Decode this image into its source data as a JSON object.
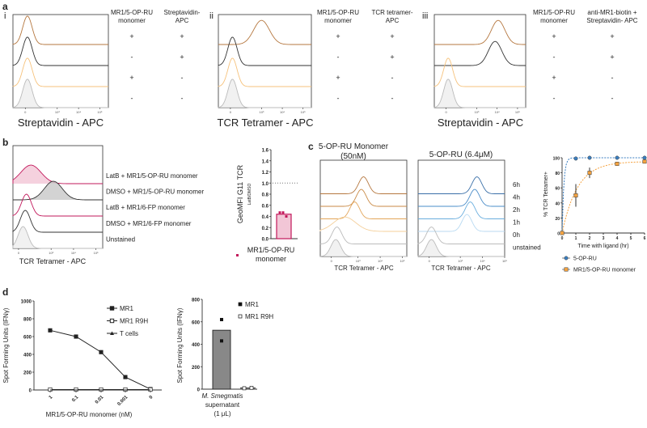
{
  "panels": {
    "a": "a",
    "b": "b",
    "c": "c",
    "d": "d",
    "i": "i",
    "ii": "ii",
    "iii": "iii"
  },
  "a": {
    "i": {
      "xlabel": "Streptavidin - APC",
      "col1": [
        "MR1/5-OP-RU",
        "monomer"
      ],
      "col2": [
        "Streptavidin-",
        "APC"
      ],
      "rows": [
        [
          "+",
          "+"
        ],
        [
          "-",
          "+"
        ],
        [
          "+",
          "-"
        ],
        [
          "-",
          "-"
        ]
      ]
    },
    "ii": {
      "xlabel": "TCR Tetramer - APC",
      "col1": [
        "MR1/5-OP-RU",
        "monomer"
      ],
      "col2": [
        "TCR tetramer-",
        "APC"
      ],
      "rows": [
        [
          "+",
          "+"
        ],
        [
          "-",
          "+"
        ],
        [
          "+",
          "-"
        ],
        [
          "-",
          "-"
        ]
      ]
    },
    "iii": {
      "xlabel": "Streptavidin - APC",
      "col1": [
        "MR1/5-OP-RU",
        "monomer"
      ],
      "col2": [
        "anti-MR1-biotin +",
        "Streptavidin- APC"
      ],
      "rows": [
        [
          "+",
          "+"
        ],
        [
          "-",
          "+"
        ],
        [
          "+",
          "-"
        ],
        [
          "-",
          "-"
        ]
      ]
    }
  },
  "b": {
    "xlabel": "TCR Tetramer - APC",
    "labels": [
      "LatB + MR1/5-OP-RU monomer",
      "DMSO + MR1/5-OP-RU monomer",
      "LatB + MR1/6-FP monomer",
      "DMSO + MR1/6-FP monomer",
      "Unstained"
    ]
  },
  "c": {
    "title1": [
      "5-OP-RU Monomer",
      "(50nM)"
    ],
    "title2": "5-OP-RU (6.4μM)",
    "xlabel": "TCR Tetramer - APC",
    "times": [
      "6h",
      "4h",
      "2h",
      "1h",
      "0h",
      "unstained"
    ]
  },
  "hist_ticks": [
    "0",
    "10³",
    "10⁴",
    "10⁵"
  ],
  "colors": {
    "brown": "#b5773f",
    "black": "#333333",
    "lightorange": "#f6c27c",
    "gray": "#bbbbbb",
    "pink": "#c2185b",
    "pinkfill": "#f2c6d6",
    "blue": "#3a7fc1",
    "orange": "#f5a340"
  },
  "chart_data": [
    {
      "type": "histogram",
      "panel": "a-i",
      "xscale": "log",
      "curves": [
        {
          "name": "monomer+ strep+",
          "peak_log": 1.6,
          "color": "brown"
        },
        {
          "name": "monomer- strep+",
          "peak_log": 1.6,
          "color": "black"
        },
        {
          "name": "monomer+ strep-",
          "peak_log": 1.6,
          "color": "lightorange"
        },
        {
          "name": "unstained",
          "peak_log": 1.6,
          "color": "gray",
          "fill": true
        }
      ]
    },
    {
      "type": "histogram",
      "panel": "a-ii",
      "xscale": "log",
      "curves": [
        {
          "name": "monomer+ tet+",
          "peak_log": 3.0,
          "color": "brown",
          "width": 0.38
        },
        {
          "name": "monomer- tet+",
          "peak_log": 1.6,
          "color": "black"
        },
        {
          "name": "monomer+ tet-",
          "peak_log": 1.6,
          "color": "lightorange"
        },
        {
          "name": "unstained",
          "peak_log": 1.6,
          "color": "gray",
          "fill": true
        }
      ]
    },
    {
      "type": "histogram",
      "panel": "a-iii",
      "xscale": "log",
      "curves": [
        {
          "name": "monomer+ anti-MR1+",
          "peak_log": 4.05,
          "color": "brown",
          "width": 0.33
        },
        {
          "name": "monomer- anti-MR1+",
          "peak_log": 3.9,
          "color": "black",
          "width": 0.33
        },
        {
          "name": "monomer+ anti-MR1-",
          "peak_log": 1.6,
          "color": "lightorange"
        },
        {
          "name": "unstained",
          "peak_log": 1.6,
          "color": "gray",
          "fill": true
        }
      ]
    },
    {
      "type": "histogram",
      "panel": "b",
      "xscale": "log",
      "curves": [
        {
          "name": "LatB + MR1/5-OP-RU monomer",
          "peak_log": 2.1,
          "color": "pink",
          "fill": true,
          "width": 0.45
        },
        {
          "name": "DMSO + MR1/5-OP-RU monomer",
          "peak_log": 3.1,
          "color": "black",
          "fill": true,
          "width": 0.4
        },
        {
          "name": "LatB + MR1/6-FP monomer",
          "peak_log": 1.9,
          "color": "pink"
        },
        {
          "name": "DMSO + MR1/6-FP monomer",
          "peak_log": 1.85,
          "color": "black"
        },
        {
          "name": "Unstained",
          "peak_log": 1.75,
          "color": "gray",
          "fill": true
        }
      ]
    },
    {
      "type": "bar",
      "panel": "b-bar",
      "ylabel": "GeoMFI G11 TCR",
      "ylabel_sub": "LatB/DMSO",
      "categories": [
        "MR1/5-OP-RU monomer"
      ],
      "values": [
        0.44
      ],
      "points": [
        0.47,
        0.47,
        0.4
      ],
      "reference_line": 1.0,
      "ylim": [
        0,
        1.6
      ],
      "yticks": [
        "0.0",
        "0.2",
        "0.4",
        "0.6",
        "0.8",
        "1.0",
        "1.2",
        "1.4",
        "1.6"
      ],
      "legend": "MR1/5-OP-RU monomer"
    },
    {
      "type": "histogram",
      "panel": "c-monomer",
      "xscale": "log",
      "curves": [
        {
          "name": "6h",
          "peak_log": 3.25,
          "color": "#b5773f"
        },
        {
          "name": "4h",
          "peak_log": 3.15,
          "color": "#c98a45"
        },
        {
          "name": "2h",
          "peak_log": 2.85,
          "color": "#e3a55a"
        },
        {
          "name": "1h",
          "peak_log": 2.4,
          "color": "#f4cf9a",
          "width": 0.5
        },
        {
          "name": "0h",
          "peak_log": 2.05,
          "color": "#bbbbbb"
        },
        {
          "name": "unstained",
          "peak_log": 2.0,
          "color": "#bbbbbb",
          "fill": true
        }
      ]
    },
    {
      "type": "histogram",
      "panel": "c-5oprU",
      "xscale": "log",
      "curves": [
        {
          "name": "6h",
          "peak_log": 3.75,
          "color": "#3a6fa8"
        },
        {
          "name": "4h",
          "peak_log": 3.65,
          "color": "#4a8cc8"
        },
        {
          "name": "2h",
          "peak_log": 3.45,
          "color": "#6aaede"
        },
        {
          "name": "1h",
          "peak_log": 3.3,
          "color": "#b9daf2"
        },
        {
          "name": "0h",
          "peak_log": 1.7,
          "color": "#bbbbbb"
        },
        {
          "name": "unstained",
          "peak_log": 1.7,
          "color": "#bbbbbb",
          "fill": true
        }
      ]
    },
    {
      "type": "line",
      "panel": "c-line",
      "xlabel": "Time with ligand (hr)",
      "ylabel": "% TCR Tetramer+",
      "xlim": [
        0,
        6
      ],
      "ylim": [
        0,
        100
      ],
      "xticks": [
        "0",
        "1",
        "2",
        "3",
        "4",
        "5",
        "6"
      ],
      "yticks": [
        "0",
        "20",
        "40",
        "60",
        "80",
        "100"
      ],
      "series": [
        {
          "name": "5-OP-RU",
          "x": [
            0,
            1,
            2,
            4,
            6
          ],
          "y": [
            0,
            99,
            100,
            100,
            100
          ],
          "err": [
            0,
            0,
            0,
            0,
            0
          ],
          "color": "blue"
        },
        {
          "name": "MR1/5-OP-RU monomer",
          "x": [
            0,
            1,
            2,
            4,
            6
          ],
          "y": [
            0,
            50,
            80,
            92,
            95
          ],
          "err": [
            0,
            15,
            7,
            2,
            2
          ],
          "color": "orange"
        }
      ]
    },
    {
      "type": "line",
      "panel": "d-line",
      "xlabel": "MR1/5-OP-RU monomer (nM)",
      "ylabel": "Spot Forming Units (IFNγ)",
      "categories": [
        "1",
        "0.1",
        "0.01",
        "0.001",
        "0"
      ],
      "ylim": [
        0,
        1000
      ],
      "yticks": [
        "0",
        "200",
        "400",
        "600",
        "800",
        "1000"
      ],
      "series": [
        {
          "name": "MR1",
          "values": [
            670,
            600,
            425,
            145,
            10
          ],
          "marker": "filled-square"
        },
        {
          "name": "MR1 R9H",
          "values": [
            5,
            5,
            5,
            5,
            5
          ],
          "marker": "open-square"
        },
        {
          "name": "T cells",
          "values": [
            0,
            0,
            0,
            0,
            0
          ],
          "marker": "triangle"
        }
      ]
    },
    {
      "type": "bar",
      "panel": "d-bar",
      "ylabel": "Spot Forming Units (IFNγ)",
      "category": [
        "M. Smegmatis",
        "supernatant",
        "(1 μL)"
      ],
      "ylim": [
        0,
        800
      ],
      "yticks": [
        "0",
        "200",
        "400",
        "600",
        "800"
      ],
      "series": [
        {
          "name": "MR1",
          "value": 525,
          "points": [
            620,
            430
          ]
        },
        {
          "name": "MR1 R9H",
          "value": 10,
          "points": [
            8,
            12
          ]
        }
      ]
    }
  ]
}
